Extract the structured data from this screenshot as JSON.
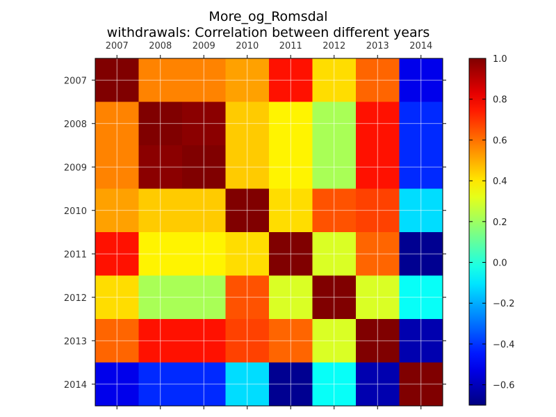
{
  "chart_data": {
    "type": "heatmap",
    "title": "More_og_Romsdal",
    "subtitle": "withdrawals: Correlation between different years",
    "x_categories": [
      "2007",
      "2008",
      "2009",
      "2010",
      "2011",
      "2012",
      "2013",
      "2014"
    ],
    "y_categories": [
      "2007",
      "2008",
      "2009",
      "2010",
      "2011",
      "2012",
      "2013",
      "2014"
    ],
    "values": [
      [
        1.0,
        0.57,
        0.57,
        0.52,
        0.76,
        0.42,
        0.62,
        -0.52
      ],
      [
        0.57,
        1.0,
        0.98,
        0.45,
        0.38,
        0.22,
        0.76,
        -0.42
      ],
      [
        0.57,
        0.98,
        1.0,
        0.45,
        0.38,
        0.22,
        0.76,
        -0.42
      ],
      [
        0.52,
        0.45,
        0.45,
        1.0,
        0.42,
        0.65,
        0.68,
        -0.12
      ],
      [
        0.76,
        0.38,
        0.38,
        0.42,
        1.0,
        0.3,
        0.62,
        -0.67
      ],
      [
        0.42,
        0.22,
        0.22,
        0.65,
        0.3,
        1.0,
        0.3,
        -0.05
      ],
      [
        0.62,
        0.76,
        0.76,
        0.68,
        0.62,
        0.3,
        1.0,
        -0.62
      ],
      [
        -0.52,
        -0.42,
        -0.42,
        -0.12,
        -0.67,
        -0.05,
        -0.62,
        1.0
      ]
    ],
    "colormap": "jet",
    "colorbar": {
      "min": -0.7,
      "max": 1.0,
      "ticks": [
        1.0,
        0.8,
        0.6,
        0.4,
        0.2,
        0.0,
        -0.2,
        -0.4,
        -0.6
      ],
      "tick_labels": [
        "1.0",
        "0.8",
        "0.6",
        "0.4",
        "0.2",
        "0.0",
        "−0.2",
        "−0.4",
        "−0.6"
      ]
    },
    "grid": true,
    "x_axis_position": "top",
    "colorbar_position": "right"
  }
}
